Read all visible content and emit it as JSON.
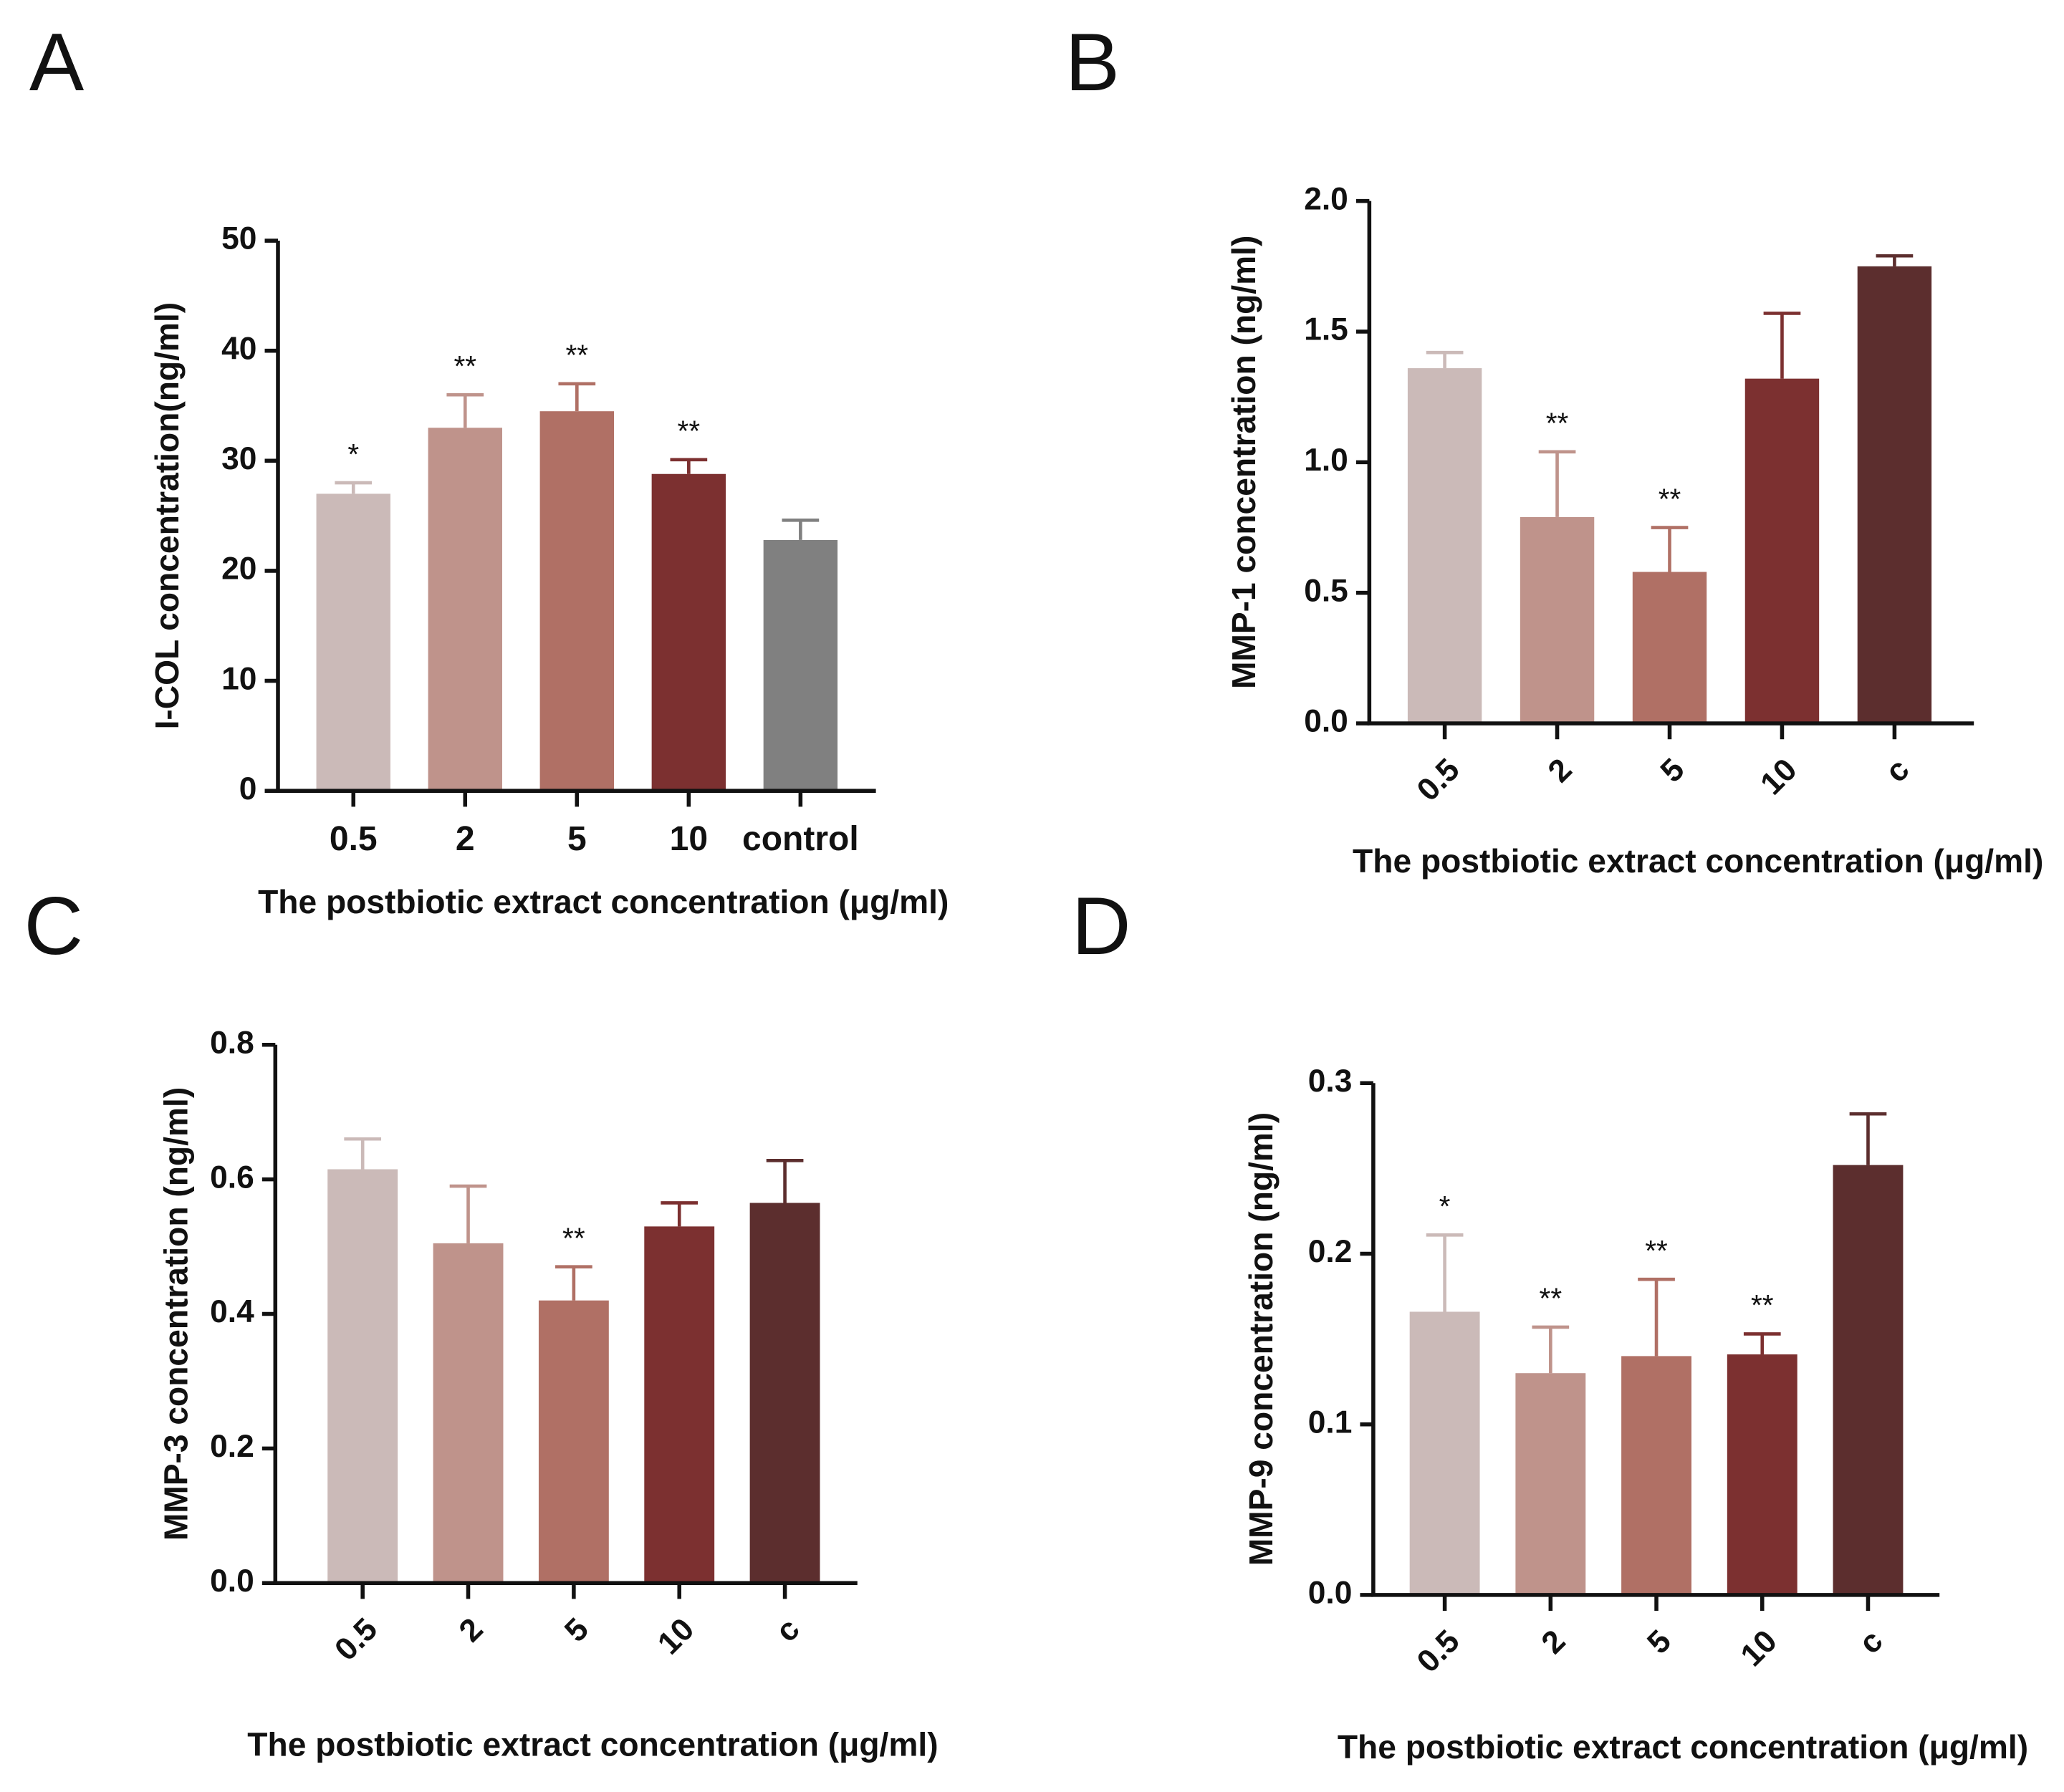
{
  "chart_data": [
    {
      "type": "bar",
      "panel": "A",
      "y_label": "I-COL concentration(ng/ml)",
      "x_label": "The postbiotic extract concentration (μg/ml)",
      "categories": [
        "0.5",
        "2",
        "5",
        "10",
        "control"
      ],
      "values": [
        27,
        33,
        34.5,
        28.8,
        22.8
      ],
      "errors": [
        1,
        3,
        2.5,
        1.3,
        1.8
      ],
      "annotations": [
        "*",
        "**",
        "**",
        "**",
        null
      ],
      "colors": [
        "#cbbab8",
        "#bf938b",
        "#b07065",
        "#7c3030",
        "#808080"
      ],
      "ylim": [
        0,
        50
      ],
      "yticks": [
        0,
        10,
        20,
        30,
        40,
        50
      ]
    },
    {
      "type": "bar",
      "panel": "B",
      "y_label": "MMP-1 concentration (ng/ml)",
      "x_label": "The postbiotic extract concentration (μg/ml)",
      "categories": [
        "0.5",
        "2",
        "5",
        "10",
        "c"
      ],
      "values": [
        1.36,
        0.79,
        0.58,
        1.32,
        1.75
      ],
      "errors": [
        0.06,
        0.25,
        0.17,
        0.25,
        0.04
      ],
      "annotations": [
        null,
        "**",
        "**",
        null,
        null
      ],
      "colors": [
        "#cbbab8",
        "#bf938b",
        "#b07065",
        "#7c3030",
        "#5c2e2e"
      ],
      "ylim": [
        0,
        2
      ],
      "yticks": [
        {
          "value": 0,
          "label": "0.0"
        },
        0.5,
        {
          "value": 1,
          "label": "1.0"
        },
        1.5,
        {
          "value": 2,
          "label": "2.0"
        }
      ]
    },
    {
      "type": "bar",
      "panel": "C",
      "y_label": "MMP-3 concentration (ng/ml)",
      "x_label": "The postbiotic extract concentration (μg/ml)",
      "categories": [
        "0.5",
        "2",
        "5",
        "10",
        "c"
      ],
      "values": [
        0.615,
        0.505,
        0.42,
        0.53,
        0.565
      ],
      "errors": [
        0.045,
        0.085,
        0.05,
        0.035,
        0.063
      ],
      "annotations": [
        null,
        null,
        "**",
        null,
        null
      ],
      "colors": [
        "#cbbab8",
        "#bf938b",
        "#b07065",
        "#7c3030",
        "#5c2e2e"
      ],
      "ylim": [
        0,
        0.8
      ],
      "yticks": [
        {
          "value": 0,
          "label": "0.0"
        },
        0.2,
        0.4,
        0.6,
        0.8
      ]
    },
    {
      "type": "bar",
      "panel": "D",
      "y_label": "MMP-9 concentration (ng/ml)",
      "x_label": "The postbiotic extract concentration (μg/ml)",
      "categories": [
        "0.5",
        "2",
        "5",
        "10",
        "c"
      ],
      "values": [
        0.166,
        0.13,
        0.14,
        0.141,
        0.252
      ],
      "errors": [
        0.045,
        0.027,
        0.045,
        0.012,
        0.03
      ],
      "annotations": [
        "*",
        "**",
        "**",
        "**",
        null
      ],
      "colors": [
        "#cbbab8",
        "#bf938b",
        "#b07065",
        "#7c3030",
        "#5c2e2e"
      ],
      "ylim": [
        0,
        0.3
      ],
      "yticks": [
        {
          "value": 0,
          "label": "0.0"
        },
        0.1,
        0.2,
        0.3
      ]
    }
  ]
}
